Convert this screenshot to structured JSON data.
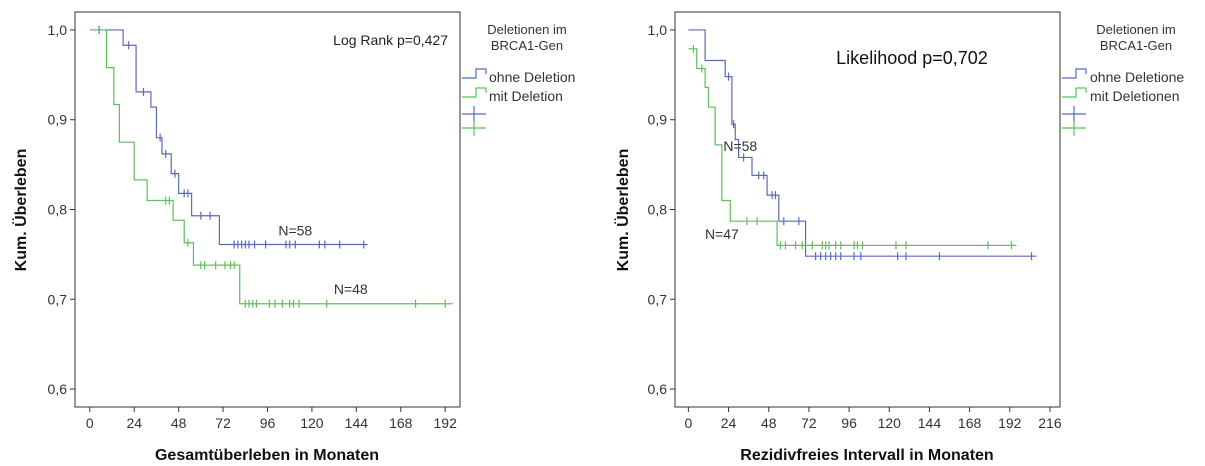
{
  "chart_data": [
    {
      "type": "line",
      "xlabel": "Gesamtüberleben in Monaten",
      "ylabel": "Kum. Überleben",
      "xlim": [
        -8,
        200
      ],
      "ylim": [
        0.58,
        1.02
      ],
      "xticks": [
        "0",
        "24",
        "48",
        "72",
        "96",
        "120",
        "144",
        "168",
        "192"
      ],
      "xtick_values": [
        0,
        24,
        48,
        72,
        96,
        120,
        144,
        168,
        192
      ],
      "yticks": [
        "0,6",
        "0,7",
        "0,8",
        "0,9",
        "1,0"
      ],
      "ytick_values": [
        0.6,
        0.7,
        0.8,
        0.9,
        1.0
      ],
      "annotation": "Log Rank p=0,427",
      "legend": {
        "title": [
          "Deletionen im",
          "BRCA1-Gen"
        ],
        "placement": "right",
        "entries": [
          "ohne Deletion",
          "mit Deletion",
          "",
          ""
        ]
      },
      "series": [
        {
          "name": "ohne Deletion",
          "color": "#5b6bb5",
          "n_label": "N=58",
          "n_label_at": [
            111,
            0.771
          ],
          "steps": [
            [
              0,
              1.0
            ],
            [
              18,
              0.983
            ],
            [
              25,
              0.931
            ],
            [
              33,
              0.914
            ],
            [
              36,
              0.88
            ],
            [
              39,
              0.862
            ],
            [
              44,
              0.84
            ],
            [
              48,
              0.818
            ],
            [
              55,
              0.793
            ],
            [
              70,
              0.761
            ],
            [
              150,
              0.761
            ]
          ],
          "censored": [
            [
              5,
              1.0
            ],
            [
              21,
              0.983
            ],
            [
              29,
              0.931
            ],
            [
              38,
              0.88
            ],
            [
              41,
              0.862
            ],
            [
              46,
              0.84
            ],
            [
              51,
              0.818
            ],
            [
              53,
              0.818
            ],
            [
              60,
              0.793
            ],
            [
              65,
              0.793
            ],
            [
              78,
              0.761
            ],
            [
              80,
              0.761
            ],
            [
              82,
              0.761
            ],
            [
              84,
              0.761
            ],
            [
              86,
              0.761
            ],
            [
              89,
              0.761
            ],
            [
              95,
              0.761
            ],
            [
              106,
              0.761
            ],
            [
              108,
              0.761
            ],
            [
              111,
              0.761
            ],
            [
              124,
              0.761
            ],
            [
              127,
              0.761
            ],
            [
              135,
              0.761
            ],
            [
              148,
              0.761
            ]
          ]
        },
        {
          "name": "mit Deletion",
          "color": "#5cc05c",
          "n_label": "N=48",
          "n_label_at": [
            141,
            0.706
          ],
          "steps": [
            [
              0,
              1.0
            ],
            [
              9,
              0.958
            ],
            [
              13,
              0.917
            ],
            [
              16,
              0.875
            ],
            [
              24,
              0.833
            ],
            [
              31,
              0.81
            ],
            [
              45,
              0.788
            ],
            [
              51,
              0.763
            ],
            [
              56,
              0.738
            ],
            [
              81,
              0.695
            ],
            [
              196,
              0.695
            ]
          ],
          "censored": [
            [
              41,
              0.81
            ],
            [
              43,
              0.81
            ],
            [
              53,
              0.763
            ],
            [
              60,
              0.738
            ],
            [
              62,
              0.738
            ],
            [
              68,
              0.738
            ],
            [
              73,
              0.738
            ],
            [
              76,
              0.738
            ],
            [
              78,
              0.738
            ],
            [
              84,
              0.695
            ],
            [
              86,
              0.695
            ],
            [
              88,
              0.695
            ],
            [
              90,
              0.695
            ],
            [
              97,
              0.695
            ],
            [
              100,
              0.695
            ],
            [
              104,
              0.695
            ],
            [
              108,
              0.695
            ],
            [
              110,
              0.695
            ],
            [
              113,
              0.695
            ],
            [
              128,
              0.695
            ],
            [
              176,
              0.695
            ],
            [
              192,
              0.695
            ]
          ]
        }
      ]
    },
    {
      "type": "line",
      "xlabel": "Rezidivfreies Intervall in Monaten",
      "ylabel": "Kum. Überleben",
      "xlim": [
        -8,
        222
      ],
      "ylim": [
        0.58,
        1.02
      ],
      "xticks": [
        "0",
        "24",
        "48",
        "72",
        "96",
        "120",
        "144",
        "168",
        "192",
        "216"
      ],
      "xtick_values": [
        0,
        24,
        48,
        72,
        96,
        120,
        144,
        168,
        192,
        216
      ],
      "yticks": [
        "0,6",
        "0,7",
        "0,8",
        "0,9",
        "1,0"
      ],
      "ytick_values": [
        0.6,
        0.7,
        0.8,
        0.9,
        1.0
      ],
      "annotation": "Likelihood p=0,702",
      "legend": {
        "title": [
          "Deletionen im",
          "BRCA1-Gen"
        ],
        "placement": "right",
        "entries": [
          "ohne Deletione",
          "mit Deletionen",
          "",
          ""
        ]
      },
      "series": [
        {
          "name": "ohne Deletione",
          "color": "#5b6bb5",
          "n_label": "N=58",
          "n_label_at": [
            31,
            0.865
          ],
          "steps": [
            [
              0,
              1.0
            ],
            [
              10,
              0.966
            ],
            [
              22,
              0.948
            ],
            [
              26,
              0.895
            ],
            [
              28,
              0.878
            ],
            [
              30,
              0.858
            ],
            [
              38,
              0.838
            ],
            [
              47,
              0.816
            ],
            [
              54,
              0.787
            ],
            [
              70,
              0.748
            ],
            [
              208,
              0.748
            ]
          ],
          "censored": [
            [
              24,
              0.948
            ],
            [
              27,
              0.895
            ],
            [
              33,
              0.858
            ],
            [
              42,
              0.838
            ],
            [
              45,
              0.838
            ],
            [
              50,
              0.816
            ],
            [
              52,
              0.816
            ],
            [
              57,
              0.787
            ],
            [
              66,
              0.787
            ],
            [
              76,
              0.748
            ],
            [
              79,
              0.748
            ],
            [
              82,
              0.748
            ],
            [
              85,
              0.748
            ],
            [
              88,
              0.748
            ],
            [
              91,
              0.748
            ],
            [
              99,
              0.748
            ],
            [
              103,
              0.748
            ],
            [
              125,
              0.748
            ],
            [
              130,
              0.748
            ],
            [
              150,
              0.748
            ],
            [
              205,
              0.748
            ]
          ]
        },
        {
          "name": "mit Deletionen",
          "color": "#5cc05c",
          "n_label": "N=47",
          "n_label_at": [
            20,
            0.767
          ],
          "steps": [
            [
              0,
              0.979
            ],
            [
              5,
              0.957
            ],
            [
              10,
              0.936
            ],
            [
              12,
              0.914
            ],
            [
              16,
              0.872
            ],
            [
              20,
              0.81
            ],
            [
              25,
              0.787
            ],
            [
              38,
              0.787
            ],
            [
              53,
              0.76
            ],
            [
              196,
              0.76
            ]
          ],
          "censored": [
            [
              3,
              0.979
            ],
            [
              8,
              0.957
            ],
            [
              35,
              0.787
            ],
            [
              41,
              0.787
            ],
            [
              55,
              0.76
            ],
            [
              58,
              0.76
            ],
            [
              64,
              0.76
            ],
            [
              68,
              0.76
            ],
            [
              74,
              0.76
            ],
            [
              80,
              0.76
            ],
            [
              82,
              0.76
            ],
            [
              84,
              0.76
            ],
            [
              88,
              0.76
            ],
            [
              91,
              0.76
            ],
            [
              99,
              0.76
            ],
            [
              101,
              0.76
            ],
            [
              104,
              0.76
            ],
            [
              124,
              0.76
            ],
            [
              130,
              0.76
            ],
            [
              179,
              0.76
            ],
            [
              193,
              0.76
            ]
          ]
        }
      ]
    }
  ]
}
